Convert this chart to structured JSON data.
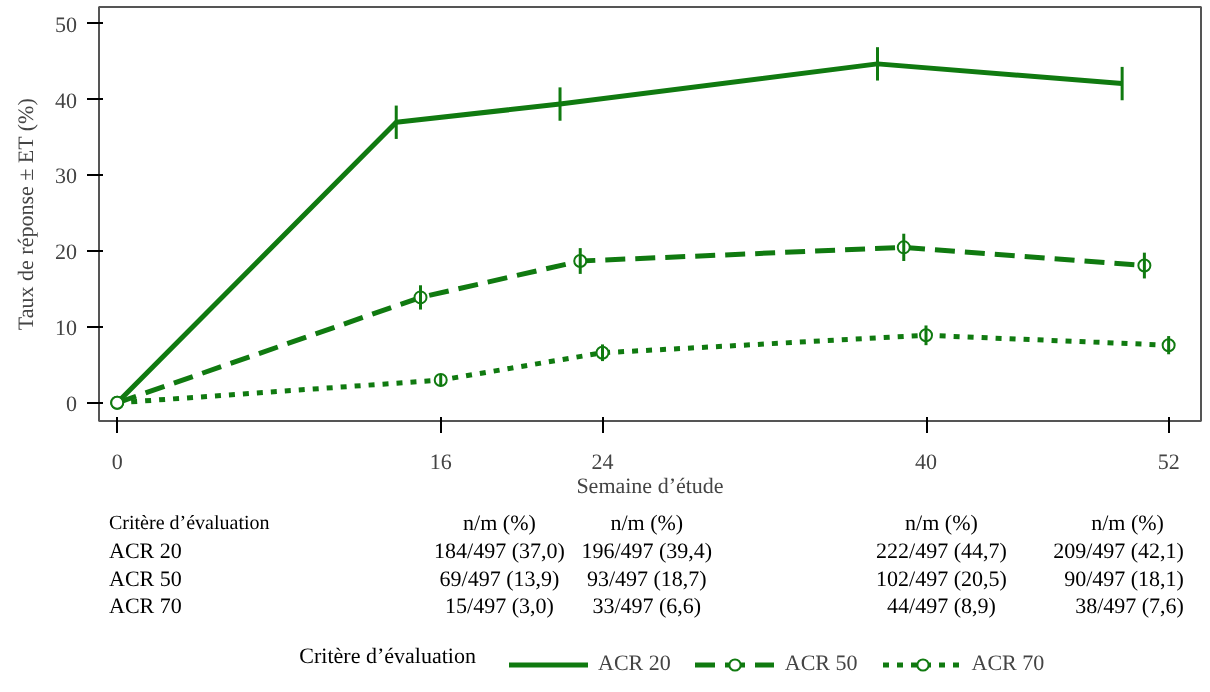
{
  "chart_data": {
    "type": "line",
    "ylabel": "Taux de réponse ± ET (%)",
    "xlabel": "Semaine d’étude",
    "legend_title": "Critère d’évaluation",
    "xlim": [
      -0.9,
      53.6
    ],
    "ylim": [
      -2.4,
      52.2
    ],
    "xticks": [
      0,
      16,
      24,
      40,
      52
    ],
    "yticks": [
      0,
      10,
      20,
      30,
      40,
      50
    ],
    "grid": false,
    "legend": "bottom",
    "annotations": [
      "Critère d’évaluation",
      "n/m (%)",
      "n/m (%)",
      "n/m (%)",
      "n/m (%)",
      "ACR 20",
      "184/497 (37,0)",
      "196/497 (39,4)",
      "222/497 (44,7)",
      "209/497 (42,1)",
      "ACR 50",
      "69/497 (13,9)",
      "93/497 (18,7)",
      "102/497 (20,5)",
      "90/497 (18,1)",
      "ACR 70",
      "15/497 (3,0)",
      "33/497 (6,6)",
      "44/497 (8,9)",
      "38/497 (7,6)"
    ],
    "series": [
      {
        "name": "ACR 20",
        "color": "#107a10",
        "line_style": "solid",
        "marker": "none",
        "x": [
          0,
          13.8,
          21.9,
          37.6,
          49.7
        ],
        "values": [
          0,
          37.0,
          39.4,
          44.7,
          42.1
        ],
        "errors": [
          null,
          2.2,
          2.2,
          2.2,
          2.2
        ]
      },
      {
        "name": "ACR 50",
        "color": "#107a10",
        "line_style": "dashed",
        "marker": "circle",
        "x": [
          0,
          15,
          22.9,
          38.9,
          50.8
        ],
        "values": [
          0,
          13.9,
          18.7,
          20.5,
          18.1
        ],
        "errors": [
          null,
          1.6,
          1.7,
          1.8,
          1.7
        ]
      },
      {
        "name": "ACR 70",
        "color": "#107a10",
        "line_style": "dotted",
        "marker": "circle",
        "x": [
          0,
          16,
          24,
          40,
          52
        ],
        "values": [
          0,
          3.0,
          6.6,
          8.9,
          7.6
        ],
        "errors": [
          null,
          0.8,
          1.1,
          1.3,
          1.2
        ]
      }
    ]
  }
}
